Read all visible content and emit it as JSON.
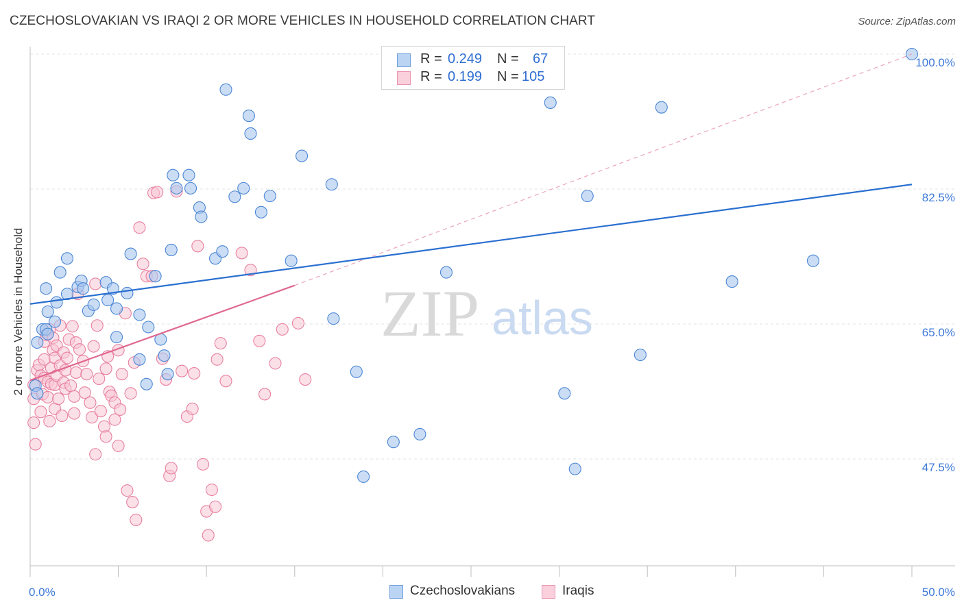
{
  "title": "CZECHOSLOVAKIAN VS IRAQI 2 OR MORE VEHICLES IN HOUSEHOLD CORRELATION CHART",
  "source": "Source: ZipAtlas.com",
  "watermark": {
    "zip": "ZIP",
    "atlas": "atlas"
  },
  "legend": {
    "rows": [
      {
        "r_label": "R =",
        "r_value": "0.249",
        "n_label": "N =",
        "n_value": "67",
        "color": "#a9c7ee"
      },
      {
        "r_label": "R =",
        "r_value": "0.199",
        "n_label": "N =",
        "n_value": "105",
        "color": "#f5b8cb"
      }
    ]
  },
  "bottom_legend": [
    {
      "label": "Czechoslovakians",
      "color": "#a9c7ee"
    },
    {
      "label": "Iraqis",
      "color": "#f5b8cb"
    }
  ],
  "colors": {
    "blue_fill": "#a9c7ee",
    "blue_stroke": "#4a86d4",
    "blue_line": "#2a6fd0",
    "pink_fill": "#f8c6d5",
    "pink_stroke": "#e8809f",
    "pink_line": "#e06890",
    "axis_text": "#3c78d8",
    "grid": "#e3e3e3"
  },
  "chart_data": {
    "type": "scatter",
    "title": "CZECHOSLOVAKIAN VS IRAQI 2 OR MORE VEHICLES IN HOUSEHOLD CORRELATION CHART",
    "xlabel": "",
    "ylabel": "2 or more Vehicles in Household",
    "xlim": [
      0,
      50
    ],
    "ylim": [
      32.5,
      102
    ],
    "x_tick_labels": [
      {
        "value": 0,
        "label": "0.0%"
      },
      {
        "value": 50,
        "label": "50.0%"
      }
    ],
    "x_minor_ticks": [
      0,
      5,
      10,
      15,
      20,
      25,
      30,
      35,
      40,
      45,
      50
    ],
    "y_ticks": [
      {
        "value": 47.5,
        "label": "47.5%"
      },
      {
        "value": 65.0,
        "label": "65.0%"
      },
      {
        "value": 82.5,
        "label": "82.5%"
      },
      {
        "value": 100.0,
        "label": "100.0%"
      }
    ],
    "grid": true,
    "series": [
      {
        "name": "Czechoslovakians",
        "color": "#a9c7ee",
        "trend": {
          "x0": 0,
          "y0": 67.6,
          "x1": 50,
          "y1": 83.1
        },
        "points": [
          [
            0.3,
            57.0
          ],
          [
            0.4,
            56.0
          ],
          [
            0.4,
            62.6
          ],
          [
            0.7,
            64.3
          ],
          [
            0.9,
            64.3
          ],
          [
            0.9,
            69.6
          ],
          [
            1.0,
            63.7
          ],
          [
            1.0,
            66.6
          ],
          [
            1.4,
            65.3
          ],
          [
            1.5,
            67.8
          ],
          [
            1.7,
            71.7
          ],
          [
            2.1,
            68.9
          ],
          [
            2.1,
            73.5
          ],
          [
            2.7,
            69.8
          ],
          [
            2.9,
            70.6
          ],
          [
            3.0,
            69.6
          ],
          [
            3.3,
            66.7
          ],
          [
            3.6,
            67.5
          ],
          [
            4.3,
            70.4
          ],
          [
            4.4,
            68.1
          ],
          [
            4.7,
            69.6
          ],
          [
            4.9,
            67.0
          ],
          [
            4.9,
            63.3
          ],
          [
            5.5,
            69.0
          ],
          [
            5.7,
            74.1
          ],
          [
            6.2,
            66.2
          ],
          [
            6.2,
            60.4
          ],
          [
            6.7,
            64.6
          ],
          [
            6.6,
            57.2
          ],
          [
            7.1,
            71.2
          ],
          [
            7.4,
            63.0
          ],
          [
            7.6,
            60.9
          ],
          [
            7.8,
            58.5
          ],
          [
            8.0,
            74.6
          ],
          [
            8.1,
            84.3
          ],
          [
            8.3,
            82.6
          ],
          [
            9.0,
            84.3
          ],
          [
            9.1,
            82.6
          ],
          [
            9.6,
            80.1
          ],
          [
            9.7,
            78.9
          ],
          [
            10.5,
            73.5
          ],
          [
            10.9,
            74.4
          ],
          [
            11.1,
            95.4
          ],
          [
            11.6,
            81.5
          ],
          [
            12.1,
            82.6
          ],
          [
            12.4,
            92.0
          ],
          [
            12.5,
            89.7
          ],
          [
            13.1,
            79.5
          ],
          [
            13.6,
            81.6
          ],
          [
            14.8,
            73.2
          ],
          [
            15.4,
            86.8
          ],
          [
            17.1,
            83.1
          ],
          [
            17.2,
            65.7
          ],
          [
            18.5,
            58.8
          ],
          [
            18.9,
            45.2
          ],
          [
            20.6,
            49.7
          ],
          [
            22.1,
            50.7
          ],
          [
            23.6,
            71.7
          ],
          [
            29.5,
            93.7
          ],
          [
            30.3,
            56.0
          ],
          [
            30.9,
            46.2
          ],
          [
            31.6,
            81.6
          ],
          [
            34.6,
            61.0
          ],
          [
            35.8,
            93.1
          ],
          [
            39.8,
            70.5
          ],
          [
            44.4,
            73.2
          ],
          [
            50.0,
            100.0
          ]
        ]
      },
      {
        "name": "Iraqis",
        "color": "#f5b8cb",
        "trend": {
          "x0": 0,
          "y0": 57.7,
          "x1": 15,
          "y1": 70.0,
          "dash_to": {
            "x": 50,
            "y": 100.0
          }
        },
        "points": [
          [
            0.2,
            57.1
          ],
          [
            0.2,
            55.3
          ],
          [
            0.2,
            52.2
          ],
          [
            0.3,
            49.4
          ],
          [
            0.4,
            59.0
          ],
          [
            0.5,
            59.7
          ],
          [
            0.6,
            53.6
          ],
          [
            0.6,
            58.3
          ],
          [
            0.7,
            55.9
          ],
          [
            0.8,
            58.0
          ],
          [
            0.8,
            62.7
          ],
          [
            0.8,
            60.4
          ],
          [
            0.9,
            63.6
          ],
          [
            1.0,
            57.5
          ],
          [
            1.0,
            55.5
          ],
          [
            1.1,
            52.4
          ],
          [
            1.1,
            64.3
          ],
          [
            1.2,
            59.3
          ],
          [
            1.2,
            57.2
          ],
          [
            1.3,
            61.6
          ],
          [
            1.3,
            63.2
          ],
          [
            1.4,
            54.0
          ],
          [
            1.4,
            60.6
          ],
          [
            1.4,
            57.1
          ],
          [
            1.5,
            62.2
          ],
          [
            1.5,
            58.3
          ],
          [
            1.6,
            55.3
          ],
          [
            1.7,
            64.8
          ],
          [
            1.7,
            59.6
          ],
          [
            1.8,
            53.1
          ],
          [
            1.9,
            61.3
          ],
          [
            1.9,
            57.4
          ],
          [
            2.0,
            56.6
          ],
          [
            2.0,
            59.0
          ],
          [
            2.1,
            60.6
          ],
          [
            2.2,
            63.0
          ],
          [
            2.3,
            57.0
          ],
          [
            2.4,
            64.7
          ],
          [
            2.5,
            55.6
          ],
          [
            2.5,
            53.4
          ],
          [
            2.6,
            62.6
          ],
          [
            2.6,
            58.7
          ],
          [
            2.7,
            68.9
          ],
          [
            2.8,
            61.7
          ],
          [
            3.0,
            60.2
          ],
          [
            3.1,
            56.1
          ],
          [
            3.2,
            58.5
          ],
          [
            3.4,
            54.8
          ],
          [
            3.5,
            52.9
          ],
          [
            3.6,
            62.1
          ],
          [
            3.7,
            48.1
          ],
          [
            3.7,
            70.2
          ],
          [
            3.8,
            64.8
          ],
          [
            3.9,
            57.9
          ],
          [
            4.0,
            53.7
          ],
          [
            4.2,
            51.7
          ],
          [
            4.3,
            50.4
          ],
          [
            4.3,
            59.2
          ],
          [
            4.4,
            60.8
          ],
          [
            4.5,
            56.2
          ],
          [
            4.6,
            55.7
          ],
          [
            4.8,
            54.8
          ],
          [
            4.8,
            52.6
          ],
          [
            5.0,
            61.6
          ],
          [
            5.0,
            49.2
          ],
          [
            5.1,
            53.9
          ],
          [
            5.2,
            58.5
          ],
          [
            5.4,
            66.4
          ],
          [
            5.5,
            43.4
          ],
          [
            5.7,
            56.0
          ],
          [
            5.8,
            41.9
          ],
          [
            5.9,
            60.0
          ],
          [
            6.0,
            39.6
          ],
          [
            6.2,
            77.5
          ],
          [
            6.4,
            72.8
          ],
          [
            6.6,
            71.2
          ],
          [
            6.9,
            71.2
          ],
          [
            7.0,
            82.0
          ],
          [
            7.2,
            82.1
          ],
          [
            7.5,
            60.5
          ],
          [
            7.7,
            57.8
          ],
          [
            7.9,
            45.3
          ],
          [
            8.0,
            46.3
          ],
          [
            8.3,
            82.2
          ],
          [
            8.6,
            58.9
          ],
          [
            8.9,
            53.0
          ],
          [
            9.2,
            54.0
          ],
          [
            9.3,
            58.6
          ],
          [
            9.5,
            75.1
          ],
          [
            9.8,
            46.8
          ],
          [
            10.0,
            40.7
          ],
          [
            10.1,
            37.6
          ],
          [
            10.3,
            43.5
          ],
          [
            10.5,
            41.3
          ],
          [
            10.6,
            60.4
          ],
          [
            10.8,
            62.5
          ],
          [
            11.1,
            57.6
          ],
          [
            12.0,
            74.2
          ],
          [
            12.5,
            72.0
          ],
          [
            13.0,
            62.8
          ],
          [
            13.3,
            55.9
          ],
          [
            13.9,
            59.9
          ],
          [
            14.3,
            64.3
          ],
          [
            15.2,
            65.1
          ],
          [
            15.6,
            57.8
          ]
        ]
      }
    ]
  }
}
